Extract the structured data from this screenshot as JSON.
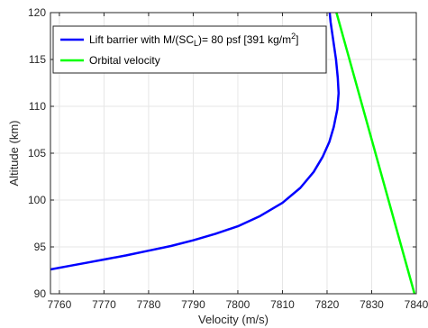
{
  "chart_data": {
    "type": "line",
    "title": "",
    "xlabel": "Velocity (m/s)",
    "ylabel": "Altitude (km)",
    "xlim": [
      7758,
      7840
    ],
    "ylim": [
      90,
      120
    ],
    "x_ticks": [
      7760,
      7770,
      7780,
      7790,
      7800,
      7810,
      7820,
      7830,
      7840
    ],
    "y_ticks": [
      90,
      95,
      100,
      105,
      110,
      115,
      120
    ],
    "grid": true,
    "legend_position": "top-left",
    "legend": {
      "barrier_prefix": "Lift barrier with M/(SC",
      "barrier_sub": "L",
      "barrier_suffix": ")= 80 psf [391 kg/m",
      "barrier_sup": "2",
      "barrier_end": "]",
      "orbital": "Orbital velocity"
    },
    "series": [
      {
        "name": "Lift barrier with M/(SC_L)= 80 psf [391 kg/m^2]",
        "color": "#0000ff",
        "points": [
          [
            7758,
            92.6
          ],
          [
            7762,
            92.95
          ],
          [
            7766,
            93.3
          ],
          [
            7770,
            93.65
          ],
          [
            7775,
            94.1
          ],
          [
            7780,
            94.6
          ],
          [
            7785,
            95.1
          ],
          [
            7790,
            95.7
          ],
          [
            7795,
            96.4
          ],
          [
            7800,
            97.2
          ],
          [
            7805,
            98.3
          ],
          [
            7810,
            99.7
          ],
          [
            7814,
            101.3
          ],
          [
            7817,
            103.0
          ],
          [
            7819,
            104.6
          ],
          [
            7820.5,
            106.2
          ],
          [
            7821.5,
            107.8
          ],
          [
            7822.3,
            109.7
          ],
          [
            7822.6,
            111.4
          ],
          [
            7822.4,
            113.0
          ],
          [
            7822.0,
            115.0
          ],
          [
            7821.4,
            117.0
          ],
          [
            7820.8,
            119.0
          ],
          [
            7820.6,
            120.0
          ]
        ]
      },
      {
        "name": "Orbital velocity",
        "color": "#00ff00",
        "points": [
          [
            7822.1,
            120
          ],
          [
            7839.6,
            90
          ]
        ]
      }
    ]
  }
}
